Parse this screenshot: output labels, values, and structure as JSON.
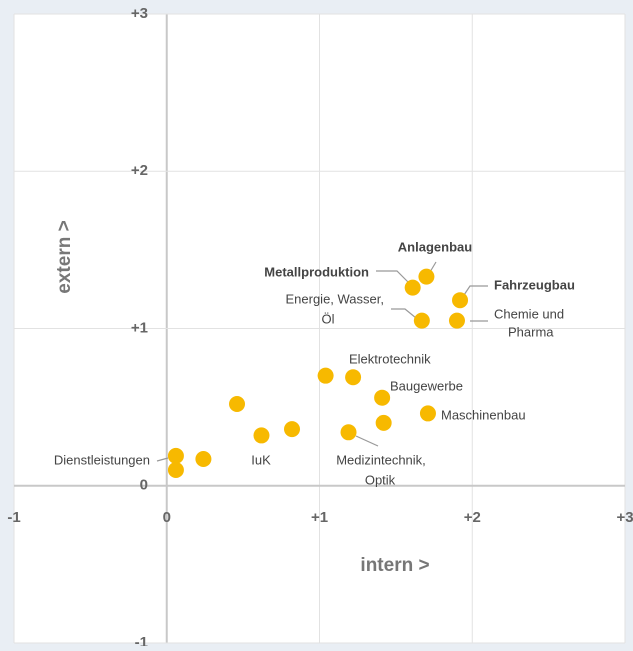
{
  "chart_data": {
    "type": "scatter",
    "xlabel": "intern >",
    "ylabel": "extern >",
    "x": [
      0.06,
      0.06,
      0.24,
      0.46,
      0.62,
      0.82,
      1.04,
      1.22,
      1.19,
      1.41,
      1.42,
      1.71,
      1.61,
      1.7,
      1.67,
      1.92,
      1.9
    ],
    "y": [
      0.19,
      0.1,
      0.17,
      0.52,
      0.32,
      0.36,
      0.7,
      0.69,
      0.34,
      0.56,
      0.4,
      0.46,
      1.26,
      1.33,
      1.05,
      1.18,
      1.05
    ],
    "color": "#f7b900",
    "xlim": [
      -1,
      3
    ],
    "ylim": [
      -1,
      3
    ],
    "xticks": [
      -1,
      0,
      {
        "value": 1,
        "label": "+1"
      },
      {
        "value": 2,
        "label": "+2"
      },
      {
        "value": 3,
        "label": "+3"
      }
    ],
    "yticks": [
      -1,
      0,
      {
        "value": 1,
        "label": "+1"
      },
      {
        "value": 2,
        "label": "+2"
      },
      {
        "value": 3,
        "label": "+3"
      }
    ],
    "grid": true,
    "annotations": [
      [
        "Anlagenbau"
      ],
      [
        "Metallproduktion"
      ],
      [
        "Fahrzeugbau"
      ],
      [
        "Energie, Wasser,",
        "Öl"
      ],
      [
        "Chemie und",
        "Pharma"
      ],
      [
        "Elektrotechnik"
      ],
      [
        "Baugewerbe"
      ],
      [
        "Maschinenbau"
      ],
      [
        "Medizintechnik,",
        "Optik"
      ],
      [
        "Dienstleistungen"
      ],
      [
        "IuK"
      ]
    ]
  }
}
